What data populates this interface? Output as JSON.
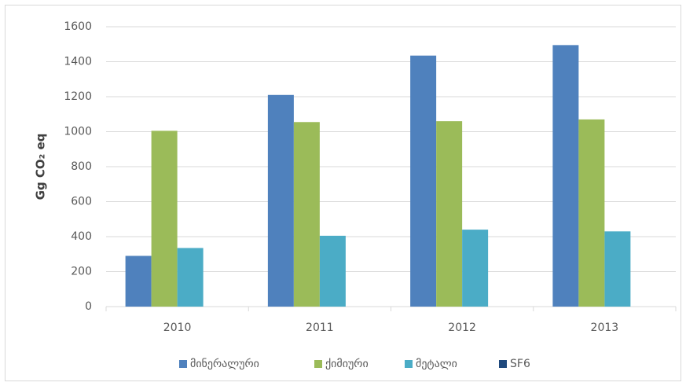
{
  "chart_data": {
    "type": "bar",
    "y_label": "Gg CO₂ eq",
    "categories": [
      "2010",
      "2011",
      "2012",
      "2013"
    ],
    "series": [
      {
        "name": "მინერალური",
        "color": "#4f81bd",
        "values": [
          290,
          1210,
          1435,
          1495
        ]
      },
      {
        "name": "ქიმიური",
        "color": "#9bbb59",
        "values": [
          1005,
          1055,
          1060,
          1070
        ]
      },
      {
        "name": "მეტალი",
        "color": "#4bacc6",
        "values": [
          335,
          405,
          440,
          430
        ]
      },
      {
        "name": "SF6",
        "color": "#1f497d",
        "values": [
          0,
          0,
          0,
          0
        ]
      }
    ],
    "ylim": [
      0,
      1600
    ],
    "yticks": [
      0,
      200,
      400,
      600,
      800,
      1000,
      1200,
      1400,
      1600
    ],
    "grid": true,
    "legend": "bottom"
  }
}
